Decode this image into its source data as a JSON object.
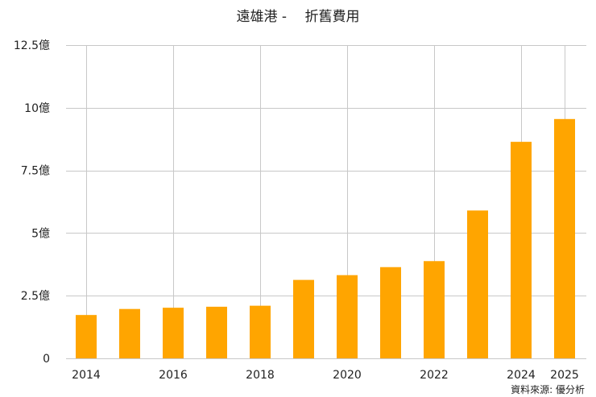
{
  "chart_data": {
    "type": "bar",
    "title": "遠雄港 -　 折舊費用",
    "categories": [
      "2014",
      "2015",
      "2016",
      "2017",
      "2018",
      "2019",
      "2020",
      "2021",
      "2022",
      "2023",
      "2024",
      "2025"
    ],
    "x_tick_labels": [
      "2014",
      "",
      "2016",
      "",
      "2018",
      "",
      "2020",
      "",
      "2022",
      "",
      "2024",
      "2025"
    ],
    "values": [
      1.73,
      1.97,
      2.02,
      2.06,
      2.1,
      3.13,
      3.32,
      3.64,
      3.88,
      5.9,
      8.64,
      9.55
    ],
    "unit": "億",
    "ylim": [
      0,
      12.5
    ],
    "y_ticks": [
      0,
      2.5,
      5,
      7.5,
      10,
      12.5
    ],
    "y_tick_labels": [
      "0",
      "2.5億",
      "5億",
      "7.5億",
      "10億",
      "12.5億"
    ],
    "grid": true,
    "bar_color": "#FFA500",
    "source": "資料來源: 優分析"
  }
}
